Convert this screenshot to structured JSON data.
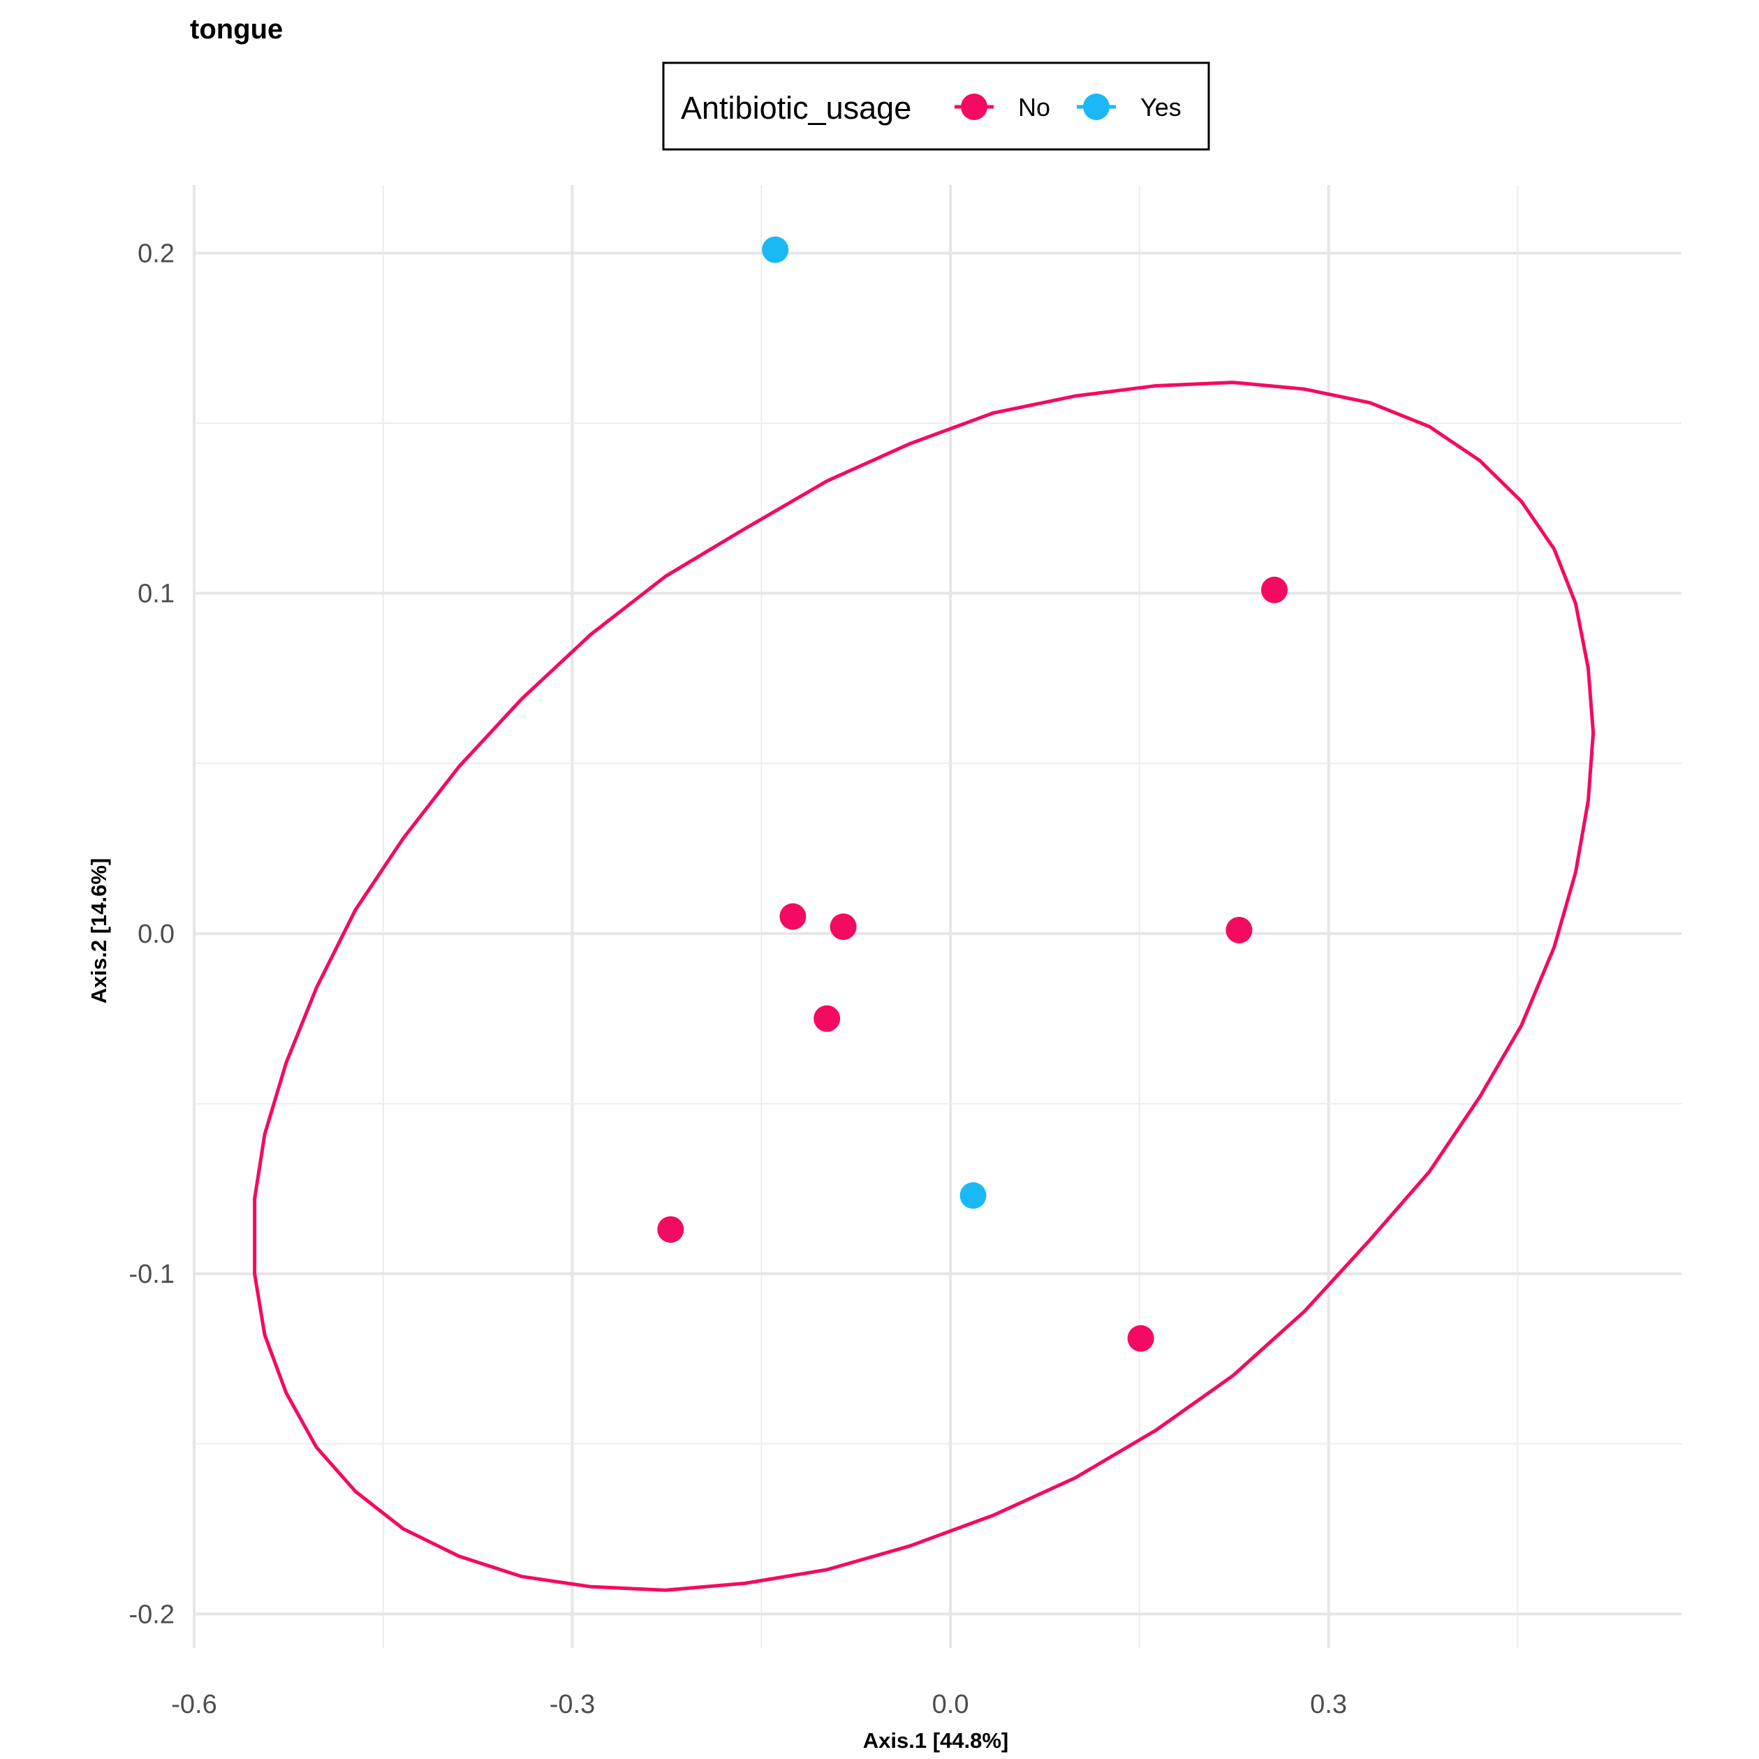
{
  "chart_data": {
    "type": "scatter",
    "title": "tongue",
    "xlabel": "Axis.1   [44.8%]",
    "ylabel": "Axis.2   [14.6%]",
    "xlim": [
      -0.6,
      0.58
    ],
    "ylim": [
      -0.21,
      0.22
    ],
    "x_ticks": [
      -0.6,
      -0.3,
      0.0,
      0.3
    ],
    "x_tick_labels": [
      "-0.6",
      "-0.3",
      "0.0",
      "0.3"
    ],
    "y_ticks": [
      -0.2,
      -0.1,
      0.0,
      0.1,
      0.2
    ],
    "y_tick_labels": [
      "-0.2",
      "-0.1",
      "0.0",
      "0.1",
      "0.2"
    ],
    "grid": true,
    "legend": {
      "title": "Antibiotic_usage",
      "position": "top",
      "entries": [
        {
          "label": "No",
          "color": "#F50A62"
        },
        {
          "label": "Yes",
          "color": "#1AB8F5"
        }
      ]
    },
    "series": [
      {
        "name": "No",
        "color": "#F50A62",
        "points": [
          {
            "x": 0.257,
            "y": 0.101
          },
          {
            "x": -0.125,
            "y": 0.005
          },
          {
            "x": -0.085,
            "y": 0.002
          },
          {
            "x": 0.229,
            "y": 0.001
          },
          {
            "x": -0.098,
            "y": -0.025
          },
          {
            "x": -0.222,
            "y": -0.087
          },
          {
            "x": 0.151,
            "y": -0.119
          }
        ]
      },
      {
        "name": "Yes",
        "color": "#1AB8F5",
        "points": [
          {
            "x": -0.139,
            "y": 0.201
          },
          {
            "x": 0.018,
            "y": -0.077
          }
        ]
      }
    ],
    "ellipse": {
      "series": "No",
      "color": "#F50A62",
      "points": [
        [
          -0.552,
          -0.078
        ],
        [
          -0.552,
          -0.1
        ],
        [
          -0.544,
          -0.118
        ],
        [
          -0.527,
          -0.135
        ],
        [
          -0.503,
          -0.151
        ],
        [
          -0.472,
          -0.164
        ],
        [
          -0.434,
          -0.175
        ],
        [
          -0.39,
          -0.183
        ],
        [
          -0.34,
          -0.189
        ],
        [
          -0.285,
          -0.192
        ],
        [
          -0.226,
          -0.193
        ],
        [
          -0.163,
          -0.191
        ],
        [
          -0.098,
          -0.187
        ],
        [
          -0.032,
          -0.18
        ],
        [
          0.034,
          -0.171
        ],
        [
          0.099,
          -0.16
        ],
        [
          0.163,
          -0.146
        ],
        [
          0.224,
          -0.13
        ],
        [
          0.281,
          -0.111
        ],
        [
          0.333,
          -0.09
        ],
        [
          0.38,
          -0.07
        ],
        [
          0.42,
          -0.048
        ],
        [
          0.453,
          -0.027
        ],
        [
          0.479,
          -0.004
        ],
        [
          0.496,
          0.018
        ],
        [
          0.506,
          0.039
        ],
        [
          0.51,
          0.059
        ],
        [
          0.506,
          0.078
        ],
        [
          0.496,
          0.097
        ],
        [
          0.479,
          0.113
        ],
        [
          0.453,
          0.127
        ],
        [
          0.42,
          0.139
        ],
        [
          0.38,
          0.149
        ],
        [
          0.333,
          0.156
        ],
        [
          0.281,
          0.16
        ],
        [
          0.224,
          0.162
        ],
        [
          0.163,
          0.161
        ],
        [
          0.099,
          0.158
        ],
        [
          0.034,
          0.153
        ],
        [
          -0.032,
          0.144
        ],
        [
          -0.098,
          0.133
        ],
        [
          -0.163,
          0.119
        ],
        [
          -0.226,
          0.105
        ],
        [
          -0.285,
          0.088
        ],
        [
          -0.34,
          0.069
        ],
        [
          -0.39,
          0.049
        ],
        [
          -0.434,
          0.028
        ],
        [
          -0.472,
          0.007
        ],
        [
          -0.503,
          -0.016
        ],
        [
          -0.527,
          -0.038
        ],
        [
          -0.544,
          -0.059
        ],
        [
          -0.552,
          -0.078
        ]
      ]
    }
  }
}
